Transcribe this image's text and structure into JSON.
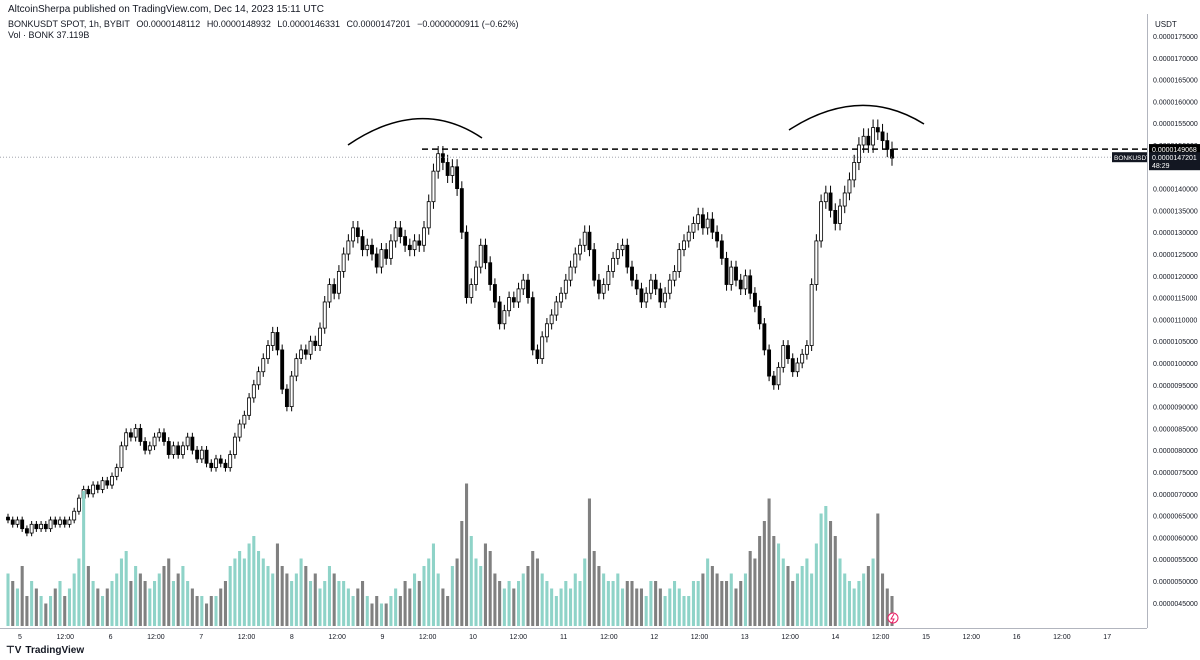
{
  "header": {
    "publisher_line": "AltcoinSherpa published on TradingView.com, Dec 14, 2023 15:11 UTC"
  },
  "legend": {
    "symbol": "BONKUSDT SPOT, 1h, BYBIT",
    "open": "O0.0000148112",
    "high": "H0.0000148932",
    "low": "L0.0000146331",
    "close": "C0.0000147201",
    "change": "−0.0000000911 (−0.62%)",
    "volume": "Vol · BONK  37.119B"
  },
  "price_axis": {
    "currency": "USDT",
    "ticks": [
      "0.0000175000",
      "0.0000170000",
      "0.0000165000",
      "0.0000160000",
      "0.0000155000",
      "0.0000150000",
      "0.0000145000",
      "0.0000140000",
      "0.0000135000",
      "0.0000130000",
      "0.0000125000",
      "0.0000120000",
      "0.0000115000",
      "0.0000110000",
      "0.0000105000",
      "0.0000100000",
      "0.0000095000",
      "0.0000090000",
      "0.0000085000",
      "0.0000080000",
      "0.0000075000",
      "0.0000070000",
      "0.0000065000",
      "0.0000060000",
      "0.0000055000",
      "0.0000050000",
      "0.0000045000"
    ],
    "resistance_label": "0.0000149068",
    "last_price_label": "0.0000147201",
    "countdown": "48:29",
    "symbol_tag": "BONKUSDT"
  },
  "time_axis": {
    "labels": [
      "5",
      "12:00",
      "6",
      "12:00",
      "7",
      "12:00",
      "8",
      "12:00",
      "9",
      "12:00",
      "10",
      "12:00",
      "11",
      "12:00",
      "12",
      "12:00",
      "13",
      "12:00",
      "14",
      "12:00",
      "15",
      "12:00",
      "16",
      "12:00",
      "17"
    ]
  },
  "footer": {
    "brand": "TradingView"
  },
  "colors": {
    "bull_body": "#ffffff",
    "bear_body": "#000000",
    "wick": "#000000",
    "vol_up": "#8fd3c8",
    "vol_down": "#808080",
    "resistance_line": "#000000",
    "last_price_line": "#9598a1"
  },
  "chart_data": {
    "type": "candlestick",
    "interval": "1h",
    "x_start": "Dec 5 00:00",
    "price_unit": "USDT",
    "y_range": [
      4.5e-06,
      1.78e-05
    ],
    "resistance_level": 1.49068e-05,
    "last_price": 1.47201e-05,
    "arcs": [
      {
        "from": [
          1.48e-05,
          1.46e-05
        ],
        "note": "head-top arc 1"
      },
      {
        "note": "head-top arc 2"
      }
    ],
    "closes": [
      6.4e-06,
      6.3e-06,
      6.4e-06,
      6.2e-06,
      6.1e-06,
      6.3e-06,
      6.2e-06,
      6.3e-06,
      6.2e-06,
      6.4e-06,
      6.3e-06,
      6.4e-06,
      6.3e-06,
      6.4e-06,
      6.6e-06,
      6.9e-06,
      7.1e-06,
      7e-06,
      7.2e-06,
      7.1e-06,
      7.3e-06,
      7.2e-06,
      7.4e-06,
      7.6e-06,
      8.1e-06,
      8.4e-06,
      8.3e-06,
      8.5e-06,
      8.2e-06,
      8e-06,
      8.1e-06,
      8.3e-06,
      8.4e-06,
      8.2e-06,
      7.9e-06,
      8.1e-06,
      7.9e-06,
      8.1e-06,
      8.3e-06,
      8e-06,
      7.8e-06,
      8e-06,
      7.7e-06,
      7.6e-06,
      7.8e-06,
      7.7e-06,
      7.6e-06,
      7.9e-06,
      8.3e-06,
      8.6e-06,
      8.8e-06,
      9.2e-06,
      9.5e-06,
      9.8e-06,
      1.01e-05,
      1.04e-05,
      1.07e-05,
      1.03e-05,
      9.4e-06,
      9e-06,
      9.7e-06,
      1.01e-05,
      1.03e-05,
      1.02e-05,
      1.05e-05,
      1.04e-05,
      1.08e-05,
      1.14e-05,
      1.18e-05,
      1.16e-05,
      1.21e-05,
      1.25e-05,
      1.28e-05,
      1.31e-05,
      1.29e-05,
      1.26e-05,
      1.27e-05,
      1.25e-05,
      1.22e-05,
      1.26e-05,
      1.24e-05,
      1.28e-05,
      1.31e-05,
      1.29e-05,
      1.27e-05,
      1.26e-05,
      1.28e-05,
      1.27e-05,
      1.31e-05,
      1.37e-05,
      1.44e-05,
      1.48e-05,
      1.46e-05,
      1.43e-05,
      1.45e-05,
      1.4e-05,
      1.3e-05,
      1.15e-05,
      1.18e-05,
      1.22e-05,
      1.27e-05,
      1.23e-05,
      1.18e-05,
      1.14e-05,
      1.09e-05,
      1.12e-05,
      1.15e-05,
      1.14e-05,
      1.17e-05,
      1.19e-05,
      1.15e-05,
      1.03e-05,
      1.01e-05,
      1.06e-05,
      1.09e-05,
      1.11e-05,
      1.14e-05,
      1.16e-05,
      1.19e-05,
      1.22e-05,
      1.25e-05,
      1.27e-05,
      1.3e-05,
      1.26e-05,
      1.19e-05,
      1.16e-05,
      1.18e-05,
      1.21e-05,
      1.24e-05,
      1.26e-05,
      1.27e-05,
      1.22e-05,
      1.19e-05,
      1.17e-05,
      1.14e-05,
      1.16e-05,
      1.19e-05,
      1.17e-05,
      1.14e-05,
      1.16e-05,
      1.19e-05,
      1.21e-05,
      1.26e-05,
      1.28e-05,
      1.3e-05,
      1.32e-05,
      1.34e-05,
      1.31e-05,
      1.33e-05,
      1.3e-05,
      1.28e-05,
      1.24e-05,
      1.18e-05,
      1.22e-05,
      1.19e-05,
      1.17e-05,
      1.2e-05,
      1.16e-05,
      1.13e-05,
      1.09e-05,
      1.03e-05,
      9.7e-06,
      9.5e-06,
      9.9e-06,
      1.04e-05,
      1.01e-05,
      9.8e-06,
      1e-05,
      1.02e-05,
      1.04e-05,
      1.18e-05,
      1.28e-05,
      1.37e-05,
      1.39e-05,
      1.35e-05,
      1.32e-05,
      1.36e-05,
      1.39e-05,
      1.42e-05,
      1.46e-05,
      1.5e-05,
      1.52e-05,
      1.5e-05,
      1.54e-05,
      1.53e-05,
      1.51e-05,
      1.49e-05,
      1.47e-05
    ],
    "volumes_relative": [
      0.35,
      0.3,
      0.25,
      0.4,
      0.2,
      0.3,
      0.25,
      0.2,
      0.15,
      0.2,
      0.25,
      0.3,
      0.2,
      0.25,
      0.35,
      0.45,
      0.9,
      0.4,
      0.3,
      0.25,
      0.2,
      0.25,
      0.3,
      0.35,
      0.45,
      0.5,
      0.3,
      0.4,
      0.35,
      0.3,
      0.25,
      0.3,
      0.35,
      0.4,
      0.45,
      0.3,
      0.35,
      0.4,
      0.3,
      0.25,
      0.2,
      0.2,
      0.15,
      0.2,
      0.2,
      0.25,
      0.3,
      0.4,
      0.45,
      0.5,
      0.45,
      0.55,
      0.6,
      0.5,
      0.45,
      0.4,
      0.35,
      0.55,
      0.4,
      0.35,
      0.3,
      0.35,
      0.45,
      0.4,
      0.3,
      0.35,
      0.25,
      0.3,
      0.4,
      0.35,
      0.3,
      0.3,
      0.25,
      0.2,
      0.25,
      0.3,
      0.2,
      0.15,
      0.2,
      0.15,
      0.15,
      0.2,
      0.25,
      0.2,
      0.3,
      0.25,
      0.35,
      0.3,
      0.4,
      0.45,
      0.55,
      0.35,
      0.25,
      0.2,
      0.4,
      0.45,
      0.7,
      0.95,
      0.6,
      0.45,
      0.4,
      0.55,
      0.5,
      0.35,
      0.3,
      0.25,
      0.3,
      0.25,
      0.3,
      0.35,
      0.4,
      0.5,
      0.45,
      0.35,
      0.3,
      0.25,
      0.2,
      0.25,
      0.3,
      0.25,
      0.35,
      0.3,
      0.45,
      0.85,
      0.5,
      0.4,
      0.35,
      0.3,
      0.3,
      0.35,
      0.25,
      0.3,
      0.3,
      0.25,
      0.25,
      0.2,
      0.3,
      0.3,
      0.25,
      0.2,
      0.25,
      0.3,
      0.25,
      0.2,
      0.2,
      0.3,
      0.3,
      0.35,
      0.45,
      0.4,
      0.35,
      0.3,
      0.3,
      0.35,
      0.25,
      0.3,
      0.35,
      0.5,
      0.45,
      0.6,
      0.7,
      0.85,
      0.6,
      0.55,
      0.45,
      0.4,
      0.3,
      0.35,
      0.4,
      0.45,
      0.35,
      0.55,
      0.75,
      0.8,
      0.7,
      0.6,
      0.45,
      0.35,
      0.3,
      0.25,
      0.3,
      0.35,
      0.4,
      0.45,
      0.75,
      0.35,
      0.25,
      0.2
    ]
  }
}
